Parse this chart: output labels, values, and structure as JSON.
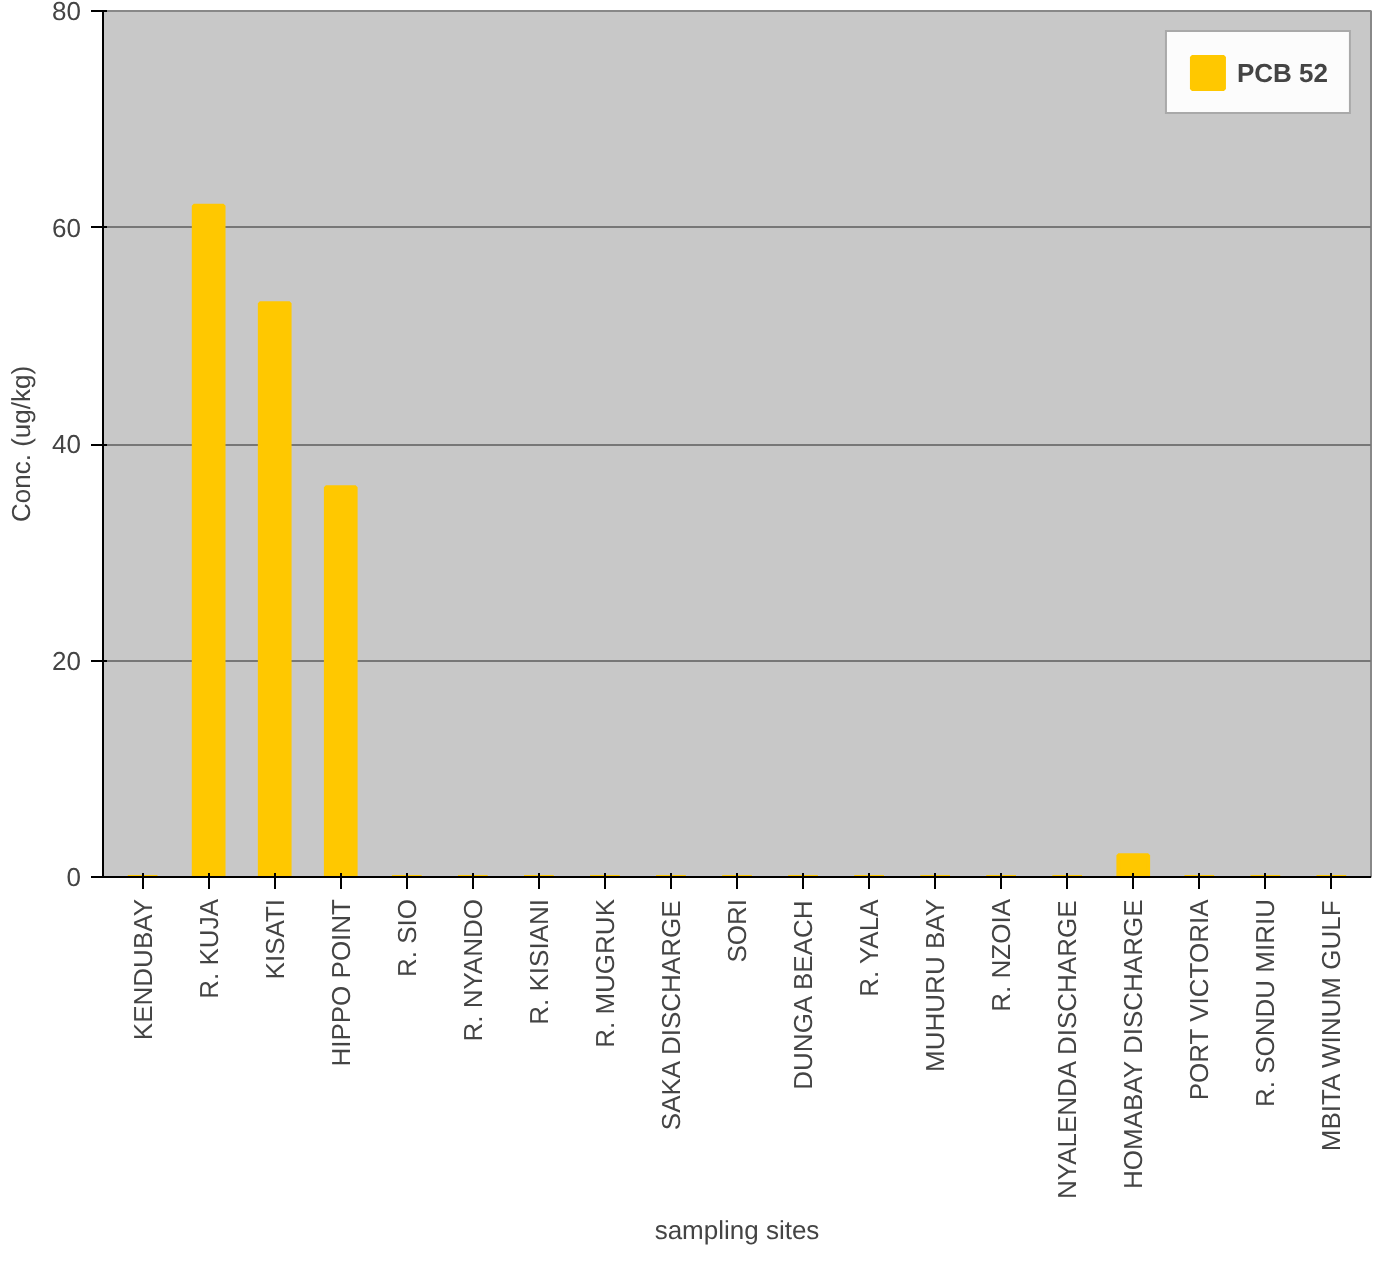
{
  "chart_data": {
    "type": "bar",
    "xlabel": "sampling sites",
    "ylabel": "Conc. (ug/kg)",
    "categories": [
      "KENDUBAY",
      "R. KUJA",
      "KISATI",
      "HIPPO POINT",
      "R. SIO",
      "R. NYANDO",
      "R. KISIANI",
      "R. MUGRUK",
      "SAKA DISCHARGE",
      "SORI",
      "DUNGA BEACH",
      "R. YALA",
      "MUHURU BAY",
      "R. NZOIA",
      "NYALENDA DISCHARGE",
      "HOMABAY DISCHARGE",
      "PORT VICTORIA",
      "R. SONDU MIRIU",
      "MBITA WINUM GULF"
    ],
    "series": [
      {
        "name": "PCB 52",
        "color": "#ffc800",
        "values": [
          0,
          62,
          53,
          36,
          0,
          0,
          0,
          0,
          0,
          0,
          0,
          0,
          0,
          0,
          0,
          2,
          0,
          0,
          0
        ]
      }
    ],
    "ylim": [
      0,
      80
    ],
    "yticks": [
      0,
      20,
      40,
      60,
      80
    ],
    "grid": "y",
    "legend": "top right"
  }
}
